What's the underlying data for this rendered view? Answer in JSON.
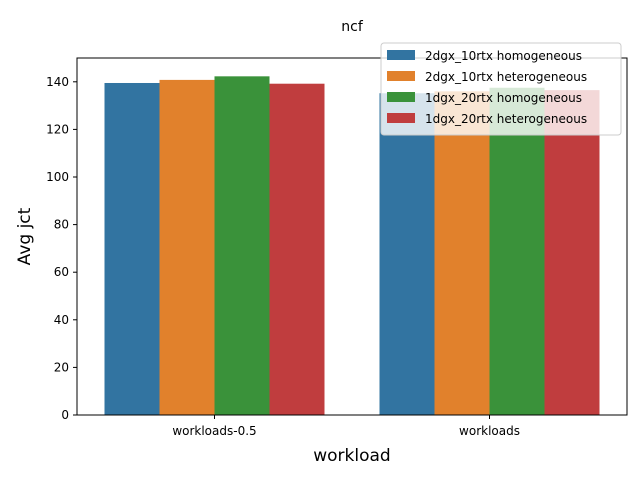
{
  "chart_data": {
    "type": "bar",
    "title": "ncf",
    "xlabel": "workload",
    "ylabel": "Avg jct",
    "categories": [
      "workloads-0.5",
      "workloads"
    ],
    "ylim": [
      0,
      150
    ],
    "yticks": [
      0,
      20,
      40,
      60,
      80,
      100,
      120,
      140
    ],
    "grid": false,
    "legend_position": "top-right",
    "series": [
      {
        "name": "2dgx_10rtx homogeneous",
        "color": "#3274a1",
        "values": [
          139.5,
          135.2
        ]
      },
      {
        "name": "2dgx_10rtx heterogeneous",
        "color": "#e1812c",
        "values": [
          140.8,
          136.0
        ]
      },
      {
        "name": "1dgx_20rtx homogeneous",
        "color": "#3a923a",
        "values": [
          142.3,
          137.5
        ]
      },
      {
        "name": "1dgx_20rtx heterogeneous",
        "color": "#c03d3e",
        "values": [
          139.2,
          136.5
        ]
      }
    ]
  }
}
